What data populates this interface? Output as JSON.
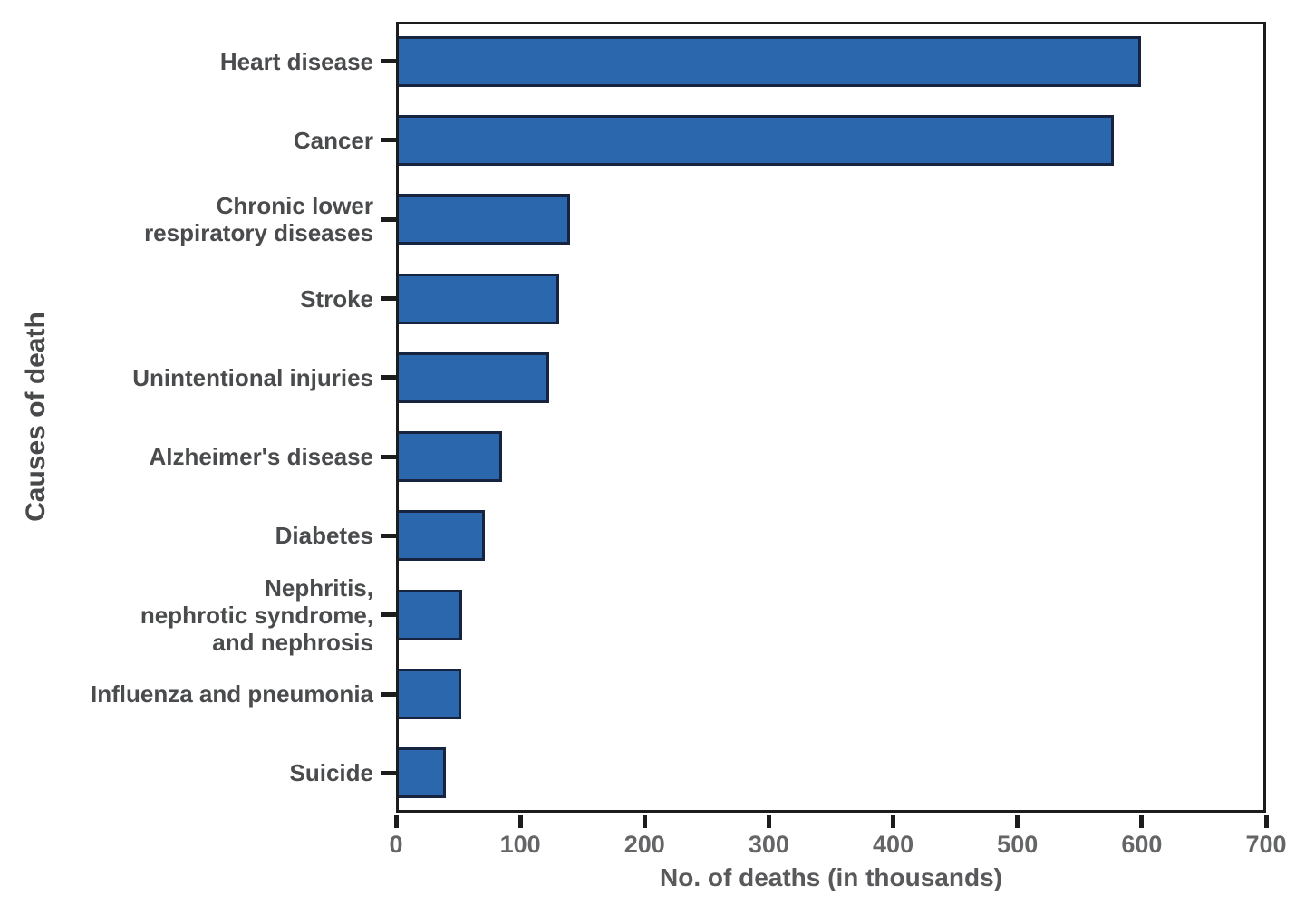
{
  "chart_data": {
    "type": "bar",
    "orientation": "horizontal",
    "title": "",
    "xlabel": "No. of deaths (in thousands)",
    "ylabel": "Causes of death",
    "xlim": [
      0,
      700
    ],
    "x_ticks": [
      "0",
      "100",
      "200",
      "300",
      "400",
      "500",
      "600",
      "700"
    ],
    "grid": false,
    "legend": false,
    "bar_color": "#2a67ad",
    "bar_border_color": "#16243f",
    "categories": [
      "Heart disease",
      "Cancer",
      "Chronic lower respiratory diseases",
      "Stroke",
      "Unintentional injuries",
      "Alzheimer's disease",
      "Diabetes",
      "Nephritis, nephrotic syndrome, and nephrosis",
      "Influenza and pneumonia",
      "Suicide"
    ],
    "category_display_lines": [
      [
        "Heart disease"
      ],
      [
        "Cancer"
      ],
      [
        "Chronic lower",
        "respiratory diseases"
      ],
      [
        "Stroke"
      ],
      [
        "Unintentional injuries"
      ],
      [
        "Alzheimer's disease"
      ],
      [
        "Diabetes"
      ],
      [
        "Nephritis,",
        "nephrotic syndrome,",
        "and nephrosis"
      ],
      [
        "Influenza and pneumonia"
      ],
      [
        "Suicide"
      ]
    ],
    "values": [
      597,
      575,
      138,
      129,
      121,
      83,
      69,
      51,
      50,
      38
    ]
  }
}
